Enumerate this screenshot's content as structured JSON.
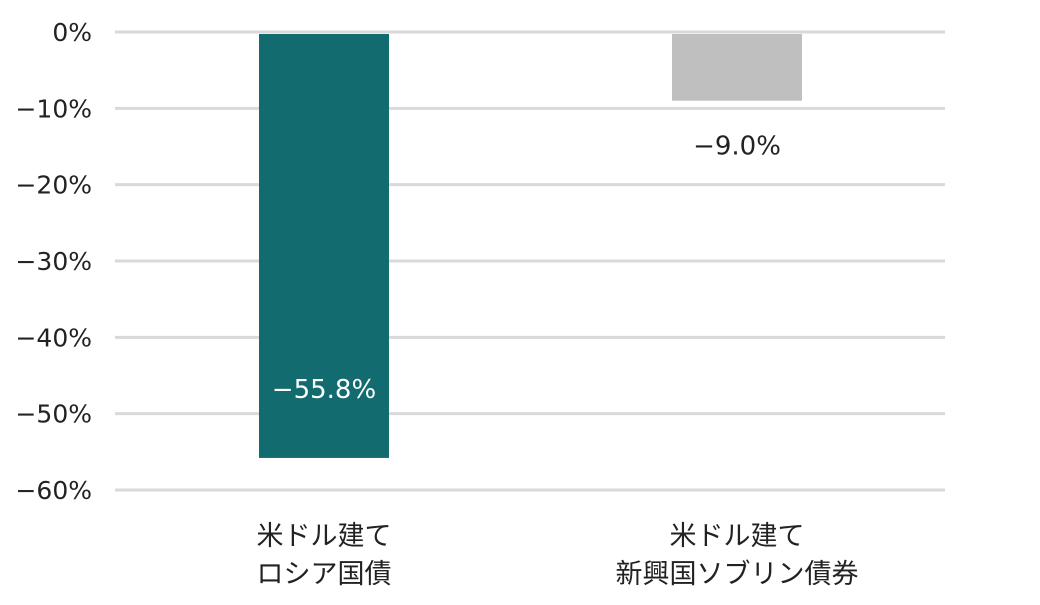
{
  "chart_data": {
    "type": "bar",
    "categories": [
      [
        "米ドル建て",
        "ロシア国債"
      ],
      [
        "米ドル建て",
        "新興国ソブリン債券"
      ]
    ],
    "values": [
      -55.8,
      -9.0
    ],
    "data_labels": [
      "−55.8%",
      "−9.0%"
    ],
    "bar_colors": [
      "#116b6f",
      "#bfbfbf"
    ],
    "data_label_colors": [
      "#ffffff",
      "#222222"
    ],
    "data_label_position": [
      "inside-bottom",
      "below"
    ],
    "ylim": [
      -60,
      0
    ],
    "yticks": [
      0,
      -10,
      -20,
      -30,
      -40,
      -50,
      -60
    ],
    "ytick_labels": [
      "0%",
      "−10%",
      "−20%",
      "−30%",
      "−40%",
      "−50%",
      "−60%"
    ],
    "grid": true,
    "gridline_color": "#d9d9d9",
    "title": "",
    "xlabel": "",
    "ylabel": ""
  }
}
